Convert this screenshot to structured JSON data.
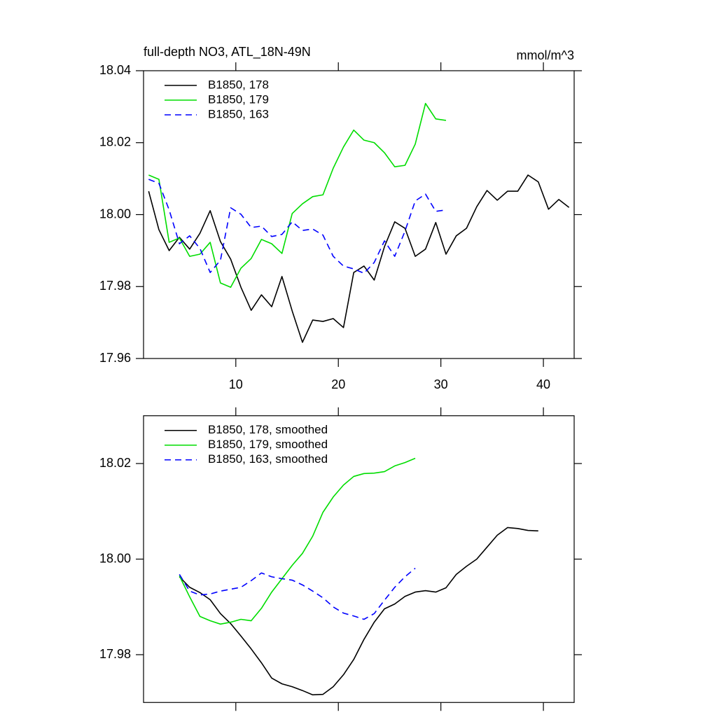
{
  "chart_data": [
    {
      "type": "line",
      "title": "full-depth NO3, ATL_18N-49N",
      "units": "mmol/m^3",
      "xlim": [
        1,
        43
      ],
      "ylim": [
        17.96,
        18.04
      ],
      "xticks": [
        10,
        20,
        30,
        40
      ],
      "yticks": [
        17.96,
        17.98,
        {
          "value": 18,
          "label": "18.00"
        },
        18.02,
        18.04
      ],
      "show_xtick_labels": true,
      "legend": "top-left",
      "series": [
        {
          "name": "B1850, 178",
          "color": "#000000",
          "line_style": "solid",
          "x": [
            1.5,
            2.5,
            3.5,
            4.5,
            5.5,
            6.5,
            7.5,
            8.5,
            9.5,
            10.5,
            11.5,
            12.5,
            13.5,
            14.5,
            15.5,
            16.5,
            17.5,
            18.5,
            19.5,
            20.5,
            21.5,
            22.5,
            23.5,
            24.5,
            25.5,
            26.5,
            27.5,
            28.5,
            29.5,
            30.5,
            31.5,
            32.5,
            33.5,
            34.5,
            35.5,
            36.5,
            37.5,
            38.5,
            39.5,
            40.5,
            41.5,
            42.5
          ],
          "values": [
            18.0065,
            17.9958,
            17.99,
            17.9937,
            17.9904,
            17.9948,
            18.0011,
            17.9925,
            17.9876,
            17.9798,
            17.9734,
            17.9777,
            17.9744,
            17.9828,
            17.9732,
            17.9645,
            17.9707,
            17.9703,
            17.9711,
            17.9686,
            17.9839,
            17.9857,
            17.9818,
            17.9911,
            17.998,
            17.9962,
            17.9884,
            17.9904,
            17.9978,
            17.989,
            17.9941,
            17.9962,
            18.0022,
            18.0067,
            18.004,
            18.0065,
            18.0065,
            18.011,
            18.0091,
            18.0015,
            18.0042,
            18.002
          ]
        },
        {
          "name": "B1850, 179",
          "color": "#00dd00",
          "line_style": "solid",
          "x": [
            1.5,
            2.5,
            3.5,
            4.5,
            5.5,
            6.5,
            7.5,
            8.5,
            9.5,
            10.5,
            11.5,
            12.5,
            13.5,
            14.5,
            15.5,
            16.5,
            17.5,
            18.5,
            19.5,
            20.5,
            21.5,
            22.5,
            23.5,
            24.5,
            25.5,
            26.5,
            27.5,
            28.5,
            29.5,
            30.5
          ],
          "values": [
            18.011,
            18.0098,
            17.9923,
            17.9935,
            17.9884,
            17.989,
            17.9923,
            17.981,
            17.9798,
            17.9851,
            17.9878,
            17.9931,
            17.9919,
            17.9892,
            18.0003,
            18.003,
            18.005,
            18.0055,
            18.0129,
            18.0188,
            18.0235,
            18.0207,
            18.02,
            18.0172,
            18.0133,
            18.0137,
            18.0196,
            18.0309,
            18.0266,
            18.0262
          ]
        },
        {
          "name": "B1850, 163",
          "color": "#0000ff",
          "line_style": "dashed",
          "x": [
            1.5,
            2.5,
            3.5,
            4.5,
            5.5,
            6.5,
            7.5,
            8.5,
            9.5,
            10.5,
            11.5,
            12.5,
            13.5,
            14.5,
            15.5,
            16.5,
            17.5,
            18.5,
            19.5,
            20.5,
            21.5,
            22.5,
            23.5,
            24.5,
            25.5,
            26.5,
            27.5,
            28.5,
            29.5,
            30.5
          ],
          "values": [
            18.0098,
            18.0087,
            18.0013,
            17.9919,
            17.9941,
            17.9906,
            17.9839,
            17.9873,
            18.0019,
            18.0001,
            17.9964,
            17.9968,
            17.9939,
            17.9945,
            17.998,
            17.9956,
            17.996,
            17.9943,
            17.9884,
            17.9857,
            17.9849,
            17.9837,
            17.9867,
            17.9927,
            17.9884,
            17.9954,
            18.0038,
            18.0057,
            18.0009,
            18.0013
          ]
        }
      ]
    },
    {
      "type": "line",
      "xlim": [
        1,
        43
      ],
      "ylim": [
        17.97,
        18.03
      ],
      "xticks": [
        10,
        20,
        30,
        40
      ],
      "yticks": [
        17.98,
        {
          "value": 18,
          "label": "18.00"
        },
        18.02
      ],
      "show_xtick_labels": false,
      "legend": "top-left",
      "series": [
        {
          "name": "B1850, 178, smoothed",
          "color": "#000000",
          "line_style": "solid",
          "x": [
            4.5,
            5.5,
            6.5,
            7.5,
            8.5,
            9.5,
            10.5,
            11.5,
            12.5,
            13.5,
            14.5,
            15.5,
            16.5,
            17.5,
            18.5,
            19.5,
            20.5,
            21.5,
            22.5,
            23.5,
            24.5,
            25.5,
            26.5,
            27.5,
            28.5,
            29.5,
            30.5,
            31.5,
            32.5,
            33.5,
            34.5,
            35.5,
            36.5,
            37.5,
            38.5,
            39.5
          ],
          "values": [
            17.9963,
            17.9941,
            17.993,
            17.9915,
            17.9886,
            17.9865,
            17.9839,
            17.9812,
            17.9783,
            17.9751,
            17.9739,
            17.9733,
            17.9725,
            17.9716,
            17.9717,
            17.9733,
            17.9758,
            17.979,
            17.9832,
            17.9868,
            17.9896,
            17.9906,
            17.9922,
            17.9931,
            17.9934,
            17.9931,
            17.994,
            17.9968,
            17.9985,
            18.0,
            18.0025,
            18.005,
            18.0066,
            18.0064,
            18.006,
            18.0059
          ]
        },
        {
          "name": "B1850, 179, smoothed",
          "color": "#00dd00",
          "line_style": "solid",
          "x": [
            4.5,
            5.5,
            6.5,
            7.5,
            8.5,
            9.5,
            10.5,
            11.5,
            12.5,
            13.5,
            14.5,
            15.5,
            16.5,
            17.5,
            18.5,
            19.5,
            20.5,
            21.5,
            22.5,
            23.5,
            24.5,
            25.5,
            26.5,
            27.5
          ],
          "values": [
            17.9965,
            17.9921,
            17.988,
            17.9871,
            17.9864,
            17.9868,
            17.9874,
            17.9871,
            17.9897,
            17.9931,
            17.9959,
            17.9987,
            18.0012,
            18.0048,
            18.0098,
            18.013,
            18.0155,
            18.0173,
            18.0179,
            18.018,
            18.0183,
            18.0195,
            18.0202,
            18.0211
          ]
        },
        {
          "name": "B1850, 163, smoothed",
          "color": "#0000ff",
          "line_style": "dashed",
          "x": [
            4.5,
            5.5,
            6.5,
            7.5,
            8.5,
            9.5,
            10.5,
            11.5,
            12.5,
            13.5,
            14.5,
            15.5,
            16.5,
            17.5,
            18.5,
            19.5,
            20.5,
            21.5,
            22.5,
            23.5,
            24.5,
            25.5,
            26.5,
            27.5
          ],
          "values": [
            17.9968,
            17.9933,
            17.9925,
            17.9927,
            17.9933,
            17.9937,
            17.9941,
            17.9955,
            17.9971,
            17.9963,
            17.9959,
            17.9956,
            17.9946,
            17.9933,
            17.9919,
            17.99,
            17.9887,
            17.9881,
            17.9874,
            17.9886,
            17.9914,
            17.9941,
            17.9963,
            17.9981
          ]
        }
      ]
    }
  ]
}
